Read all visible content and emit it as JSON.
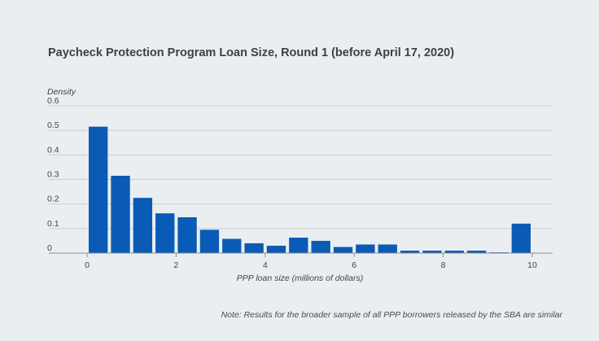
{
  "chart_data": {
    "type": "bar",
    "title": "Paycheck Protection Program Loan Size, Round 1 (before April 17, 2020)",
    "ylabel": "Density",
    "xlabel": "PPP loan size (millions of dollars)",
    "note": "Note: Results for the broader sample of all PPP borrowers released by the SBA are similar",
    "ylim": [
      0,
      0.6
    ],
    "xlim": [
      0,
      10
    ],
    "yticks": [
      {
        "value": 0,
        "label": "0"
      },
      {
        "value": 0.1,
        "label": "0.1"
      },
      {
        "value": 0.2,
        "label": "0.2"
      },
      {
        "value": 0.3,
        "label": "0.3"
      },
      {
        "value": 0.4,
        "label": "0.4"
      },
      {
        "value": 0.5,
        "label": "0.5"
      },
      {
        "value": 0.6,
        "label": "0.6"
      }
    ],
    "xticks": [
      {
        "value": 0,
        "label": "0"
      },
      {
        "value": 2,
        "label": "2"
      },
      {
        "value": 4,
        "label": "4"
      },
      {
        "value": 6,
        "label": "6"
      },
      {
        "value": 8,
        "label": "8"
      },
      {
        "value": 10,
        "label": "10"
      }
    ],
    "bin_width": 0.5,
    "bins": [
      {
        "x": 0.25,
        "value": 0.515
      },
      {
        "x": 0.75,
        "value": 0.315
      },
      {
        "x": 1.25,
        "value": 0.225
      },
      {
        "x": 1.75,
        "value": 0.162
      },
      {
        "x": 2.25,
        "value": 0.146
      },
      {
        "x": 2.75,
        "value": 0.095
      },
      {
        "x": 3.25,
        "value": 0.058
      },
      {
        "x": 3.75,
        "value": 0.04
      },
      {
        "x": 4.25,
        "value": 0.03
      },
      {
        "x": 4.75,
        "value": 0.063
      },
      {
        "x": 5.25,
        "value": 0.05
      },
      {
        "x": 5.75,
        "value": 0.025
      },
      {
        "x": 6.25,
        "value": 0.035
      },
      {
        "x": 6.75,
        "value": 0.035
      },
      {
        "x": 7.25,
        "value": 0.01
      },
      {
        "x": 7.75,
        "value": 0.01
      },
      {
        "x": 8.25,
        "value": 0.01
      },
      {
        "x": 8.75,
        "value": 0.01
      },
      {
        "x": 9.25,
        "value": 0.003
      },
      {
        "x": 9.75,
        "value": 0.12
      }
    ],
    "grid": true,
    "colors": {
      "bar": "#0a5bb5",
      "grid": "#c9ced3",
      "axis": "#8a9096",
      "background": "#ebeef1"
    }
  }
}
